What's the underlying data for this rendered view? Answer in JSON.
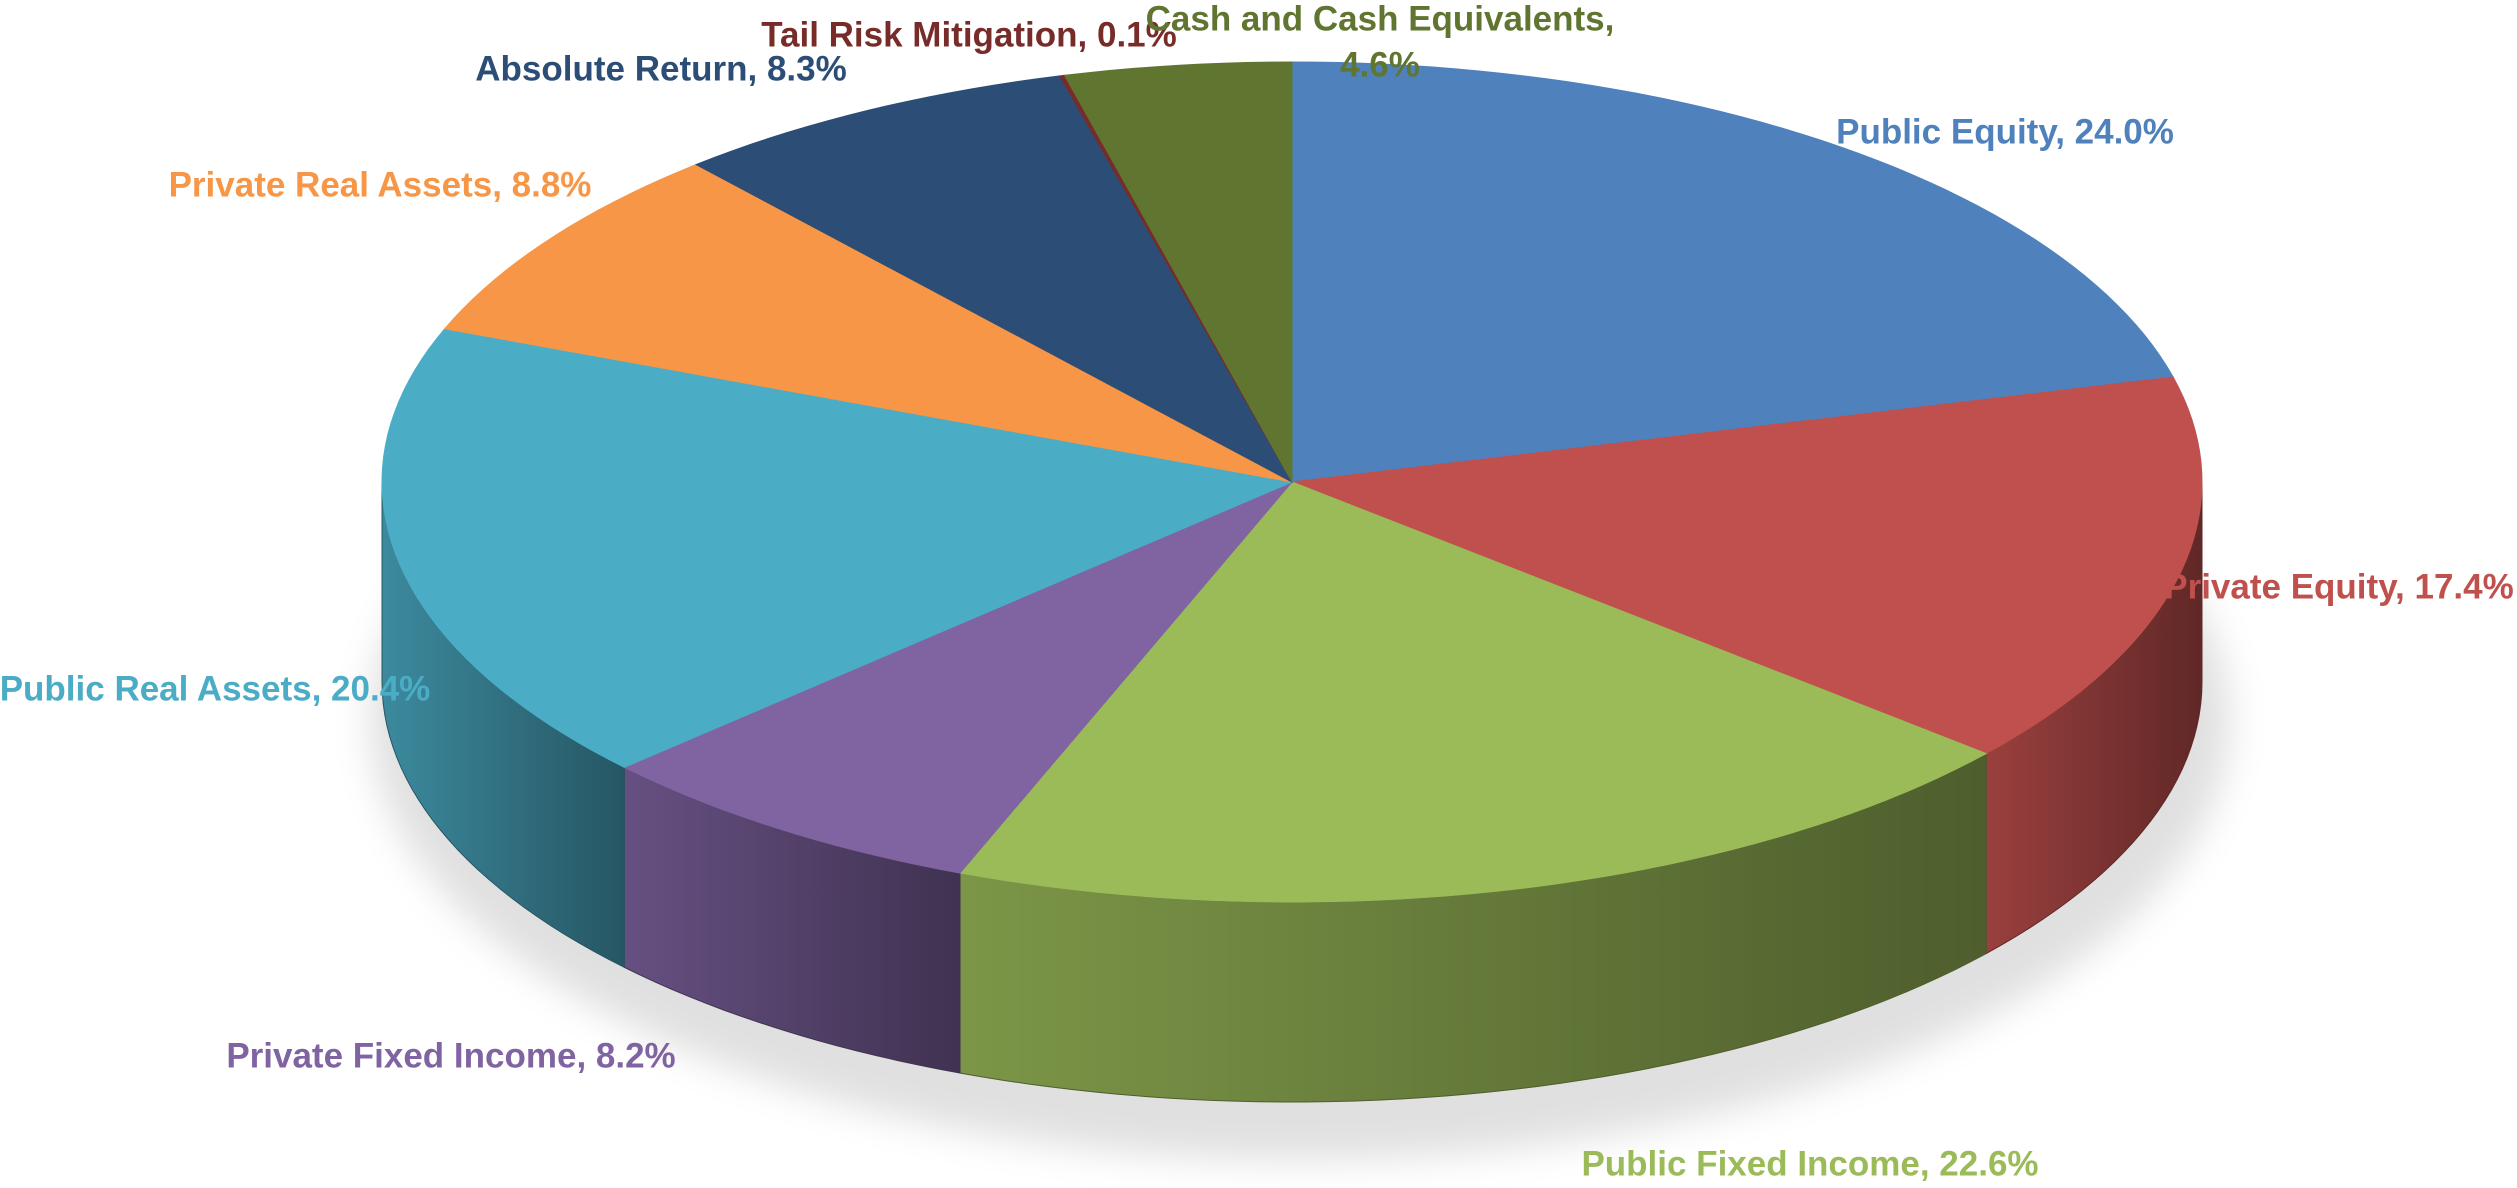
{
  "chart_data": {
    "type": "pie",
    "value_labels": [
      "Public Equity, 24.0%",
      "Private Equity, 17.4%",
      "Public Fixed Income, 22.6%",
      "Private Fixed Income, 8.2%",
      "Public Real Assets, 20.4%",
      "Private Real Assets, 8.8%",
      "Absolute Return, 8.3%",
      "Tail Risk Mitigation, 0.1%",
      "Cash and Cash Equivalents, 4.6%"
    ],
    "values": [
      24.0,
      17.4,
      22.6,
      8.2,
      20.4,
      8.8,
      8.3,
      0.1,
      4.6
    ],
    "colors": [
      "#4f81bd",
      "#c0504d",
      "#9bbb59",
      "#8064a2",
      "#4bacc6",
      "#f79646",
      "#2c4d75",
      "#772c2a",
      "#5f7530"
    ]
  }
}
